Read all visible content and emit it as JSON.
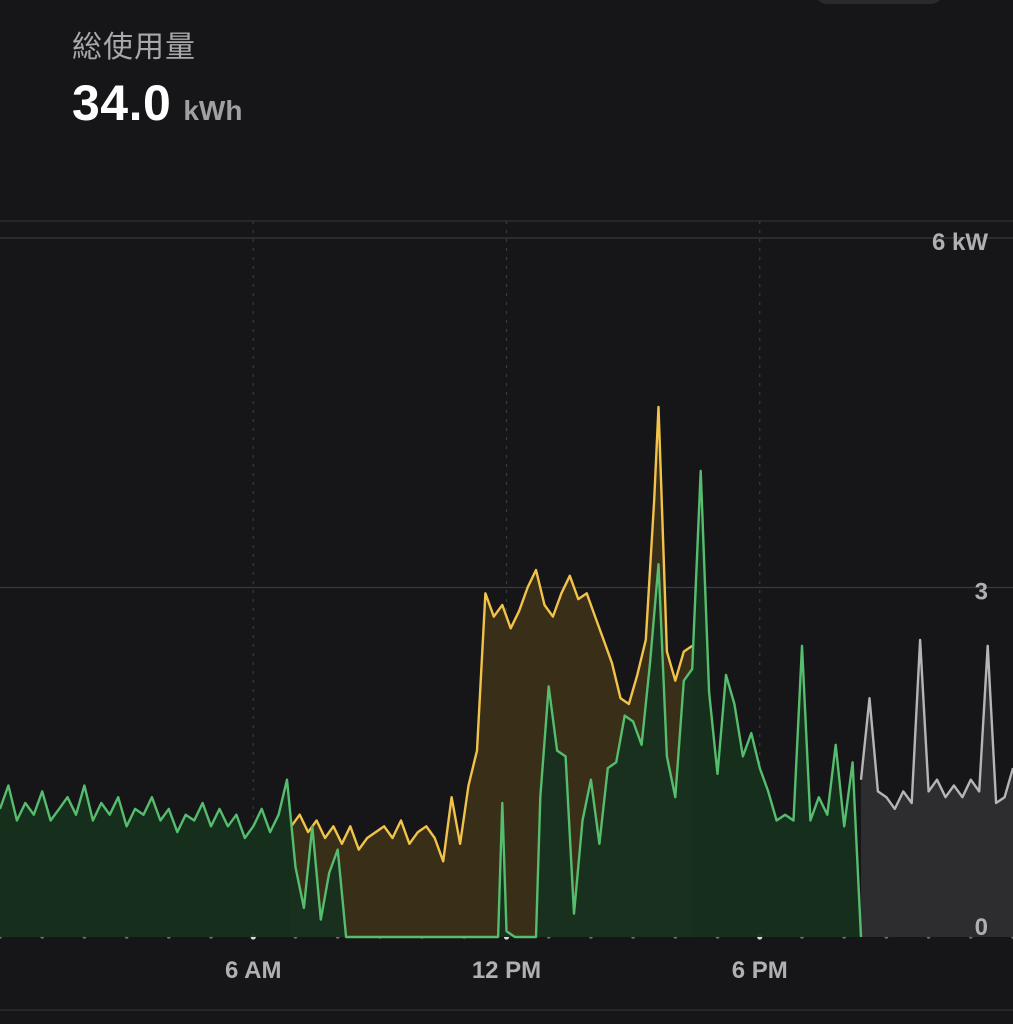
{
  "header": {
    "label": "総使用量",
    "value": "34.0",
    "unit": "kWh"
  },
  "colors": {
    "background": "#161618",
    "solar_line": "#f2c34a",
    "solar_fill": "#3b2f17",
    "home_line": "#56bd6e",
    "home_fill": "#16301e",
    "forecast_line": "#b5b5b8",
    "forecast_fill": "#2e2e31",
    "grid": "#3a3a3d",
    "tick_text": "#b0b0b4"
  },
  "chart_data": {
    "type": "area",
    "xlim": [
      0,
      24
    ],
    "ylim": [
      0,
      6
    ],
    "x_unit": "hour of day",
    "y_unit": "kW",
    "x_ticks": [
      {
        "value": 6,
        "label": "6 AM"
      },
      {
        "value": 12,
        "label": "12 PM"
      },
      {
        "value": 18,
        "label": "6 PM"
      }
    ],
    "y_ticks": [
      {
        "value": 6,
        "label": "6 kW"
      },
      {
        "value": 3,
        "label": "3"
      },
      {
        "value": 0,
        "label": "0"
      }
    ],
    "grid": true,
    "series": [
      {
        "key": "solar",
        "color": "#f2c34a",
        "points": [
          [
            6.9,
            0.95
          ],
          [
            7.1,
            1.05
          ],
          [
            7.3,
            0.9
          ],
          [
            7.5,
            1.0
          ],
          [
            7.7,
            0.85
          ],
          [
            7.9,
            0.95
          ],
          [
            8.1,
            0.8
          ],
          [
            8.3,
            0.95
          ],
          [
            8.5,
            0.75
          ],
          [
            8.7,
            0.85
          ],
          [
            8.9,
            0.9
          ],
          [
            9.1,
            0.95
          ],
          [
            9.3,
            0.85
          ],
          [
            9.5,
            1.0
          ],
          [
            9.7,
            0.8
          ],
          [
            9.9,
            0.9
          ],
          [
            10.1,
            0.95
          ],
          [
            10.3,
            0.85
          ],
          [
            10.5,
            0.65
          ],
          [
            10.7,
            1.2
          ],
          [
            10.9,
            0.8
          ],
          [
            11.1,
            1.3
          ],
          [
            11.3,
            1.6
          ],
          [
            11.5,
            2.95
          ],
          [
            11.7,
            2.75
          ],
          [
            11.9,
            2.85
          ],
          [
            12.1,
            2.65
          ],
          [
            12.3,
            2.8
          ],
          [
            12.5,
            3.0
          ],
          [
            12.7,
            3.15
          ],
          [
            12.9,
            2.85
          ],
          [
            13.1,
            2.75
          ],
          [
            13.3,
            2.95
          ],
          [
            13.5,
            3.1
          ],
          [
            13.7,
            2.9
          ],
          [
            13.9,
            2.95
          ],
          [
            14.1,
            2.75
          ],
          [
            14.3,
            2.55
          ],
          [
            14.5,
            2.35
          ],
          [
            14.7,
            2.05
          ],
          [
            14.9,
            2.0
          ],
          [
            15.1,
            2.25
          ],
          [
            15.3,
            2.55
          ],
          [
            15.5,
            3.75
          ],
          [
            15.6,
            4.55
          ],
          [
            15.8,
            2.45
          ],
          [
            16.0,
            2.2
          ],
          [
            16.2,
            2.45
          ],
          [
            16.4,
            2.5
          ]
        ]
      },
      {
        "key": "home",
        "color": "#56bd6e",
        "points": [
          [
            0.0,
            1.1
          ],
          [
            0.2,
            1.3
          ],
          [
            0.4,
            1.0
          ],
          [
            0.6,
            1.15
          ],
          [
            0.8,
            1.05
          ],
          [
            1.0,
            1.25
          ],
          [
            1.2,
            1.0
          ],
          [
            1.4,
            1.1
          ],
          [
            1.6,
            1.2
          ],
          [
            1.8,
            1.05
          ],
          [
            2.0,
            1.3
          ],
          [
            2.2,
            1.0
          ],
          [
            2.4,
            1.15
          ],
          [
            2.6,
            1.05
          ],
          [
            2.8,
            1.2
          ],
          [
            3.0,
            0.95
          ],
          [
            3.2,
            1.1
          ],
          [
            3.4,
            1.05
          ],
          [
            3.6,
            1.2
          ],
          [
            3.8,
            1.0
          ],
          [
            4.0,
            1.1
          ],
          [
            4.2,
            0.9
          ],
          [
            4.4,
            1.05
          ],
          [
            4.6,
            1.0
          ],
          [
            4.8,
            1.15
          ],
          [
            5.0,
            0.95
          ],
          [
            5.2,
            1.1
          ],
          [
            5.4,
            0.95
          ],
          [
            5.6,
            1.05
          ],
          [
            5.8,
            0.85
          ],
          [
            6.0,
            0.95
          ],
          [
            6.2,
            1.1
          ],
          [
            6.4,
            0.9
          ],
          [
            6.6,
            1.05
          ],
          [
            6.8,
            1.35
          ],
          [
            7.0,
            0.6
          ],
          [
            7.2,
            0.25
          ],
          [
            7.4,
            0.95
          ],
          [
            7.6,
            0.15
          ],
          [
            7.8,
            0.55
          ],
          [
            8.0,
            0.75
          ],
          [
            8.2,
            0.0
          ],
          [
            11.8,
            0.0
          ],
          [
            11.9,
            1.15
          ],
          [
            12.0,
            0.05
          ],
          [
            12.2,
            0.0
          ],
          [
            12.7,
            0.0
          ],
          [
            12.8,
            1.2
          ],
          [
            13.0,
            2.15
          ],
          [
            13.2,
            1.6
          ],
          [
            13.4,
            1.55
          ],
          [
            13.6,
            0.2
          ],
          [
            13.8,
            1.0
          ],
          [
            14.0,
            1.35
          ],
          [
            14.2,
            0.8
          ],
          [
            14.4,
            1.45
          ],
          [
            14.6,
            1.5
          ],
          [
            14.8,
            1.9
          ],
          [
            15.0,
            1.85
          ],
          [
            15.2,
            1.65
          ],
          [
            15.4,
            2.35
          ],
          [
            15.6,
            3.2
          ],
          [
            15.8,
            1.55
          ],
          [
            16.0,
            1.2
          ],
          [
            16.2,
            2.2
          ],
          [
            16.4,
            2.3
          ],
          [
            16.6,
            4.0
          ],
          [
            16.8,
            2.1
          ],
          [
            17.0,
            1.4
          ],
          [
            17.2,
            2.25
          ],
          [
            17.4,
            2.0
          ],
          [
            17.6,
            1.55
          ],
          [
            17.8,
            1.75
          ],
          [
            18.0,
            1.45
          ],
          [
            18.2,
            1.25
          ],
          [
            18.4,
            1.0
          ],
          [
            18.6,
            1.05
          ],
          [
            18.8,
            1.0
          ],
          [
            19.0,
            2.5
          ],
          [
            19.2,
            1.0
          ],
          [
            19.4,
            1.2
          ],
          [
            19.6,
            1.05
          ],
          [
            19.8,
            1.65
          ],
          [
            20.0,
            0.95
          ],
          [
            20.2,
            1.5
          ],
          [
            20.4,
            0.0
          ]
        ]
      },
      {
        "key": "forecast",
        "color": "#b5b5b8",
        "points": [
          [
            20.4,
            1.35
          ],
          [
            20.6,
            2.05
          ],
          [
            20.8,
            1.25
          ],
          [
            21.0,
            1.2
          ],
          [
            21.2,
            1.1
          ],
          [
            21.4,
            1.25
          ],
          [
            21.6,
            1.15
          ],
          [
            21.8,
            2.55
          ],
          [
            22.0,
            1.25
          ],
          [
            22.2,
            1.35
          ],
          [
            22.4,
            1.2
          ],
          [
            22.6,
            1.3
          ],
          [
            22.8,
            1.2
          ],
          [
            23.0,
            1.35
          ],
          [
            23.2,
            1.25
          ],
          [
            23.4,
            2.5
          ],
          [
            23.6,
            1.15
          ],
          [
            23.8,
            1.2
          ],
          [
            24.0,
            1.45
          ]
        ]
      }
    ]
  }
}
